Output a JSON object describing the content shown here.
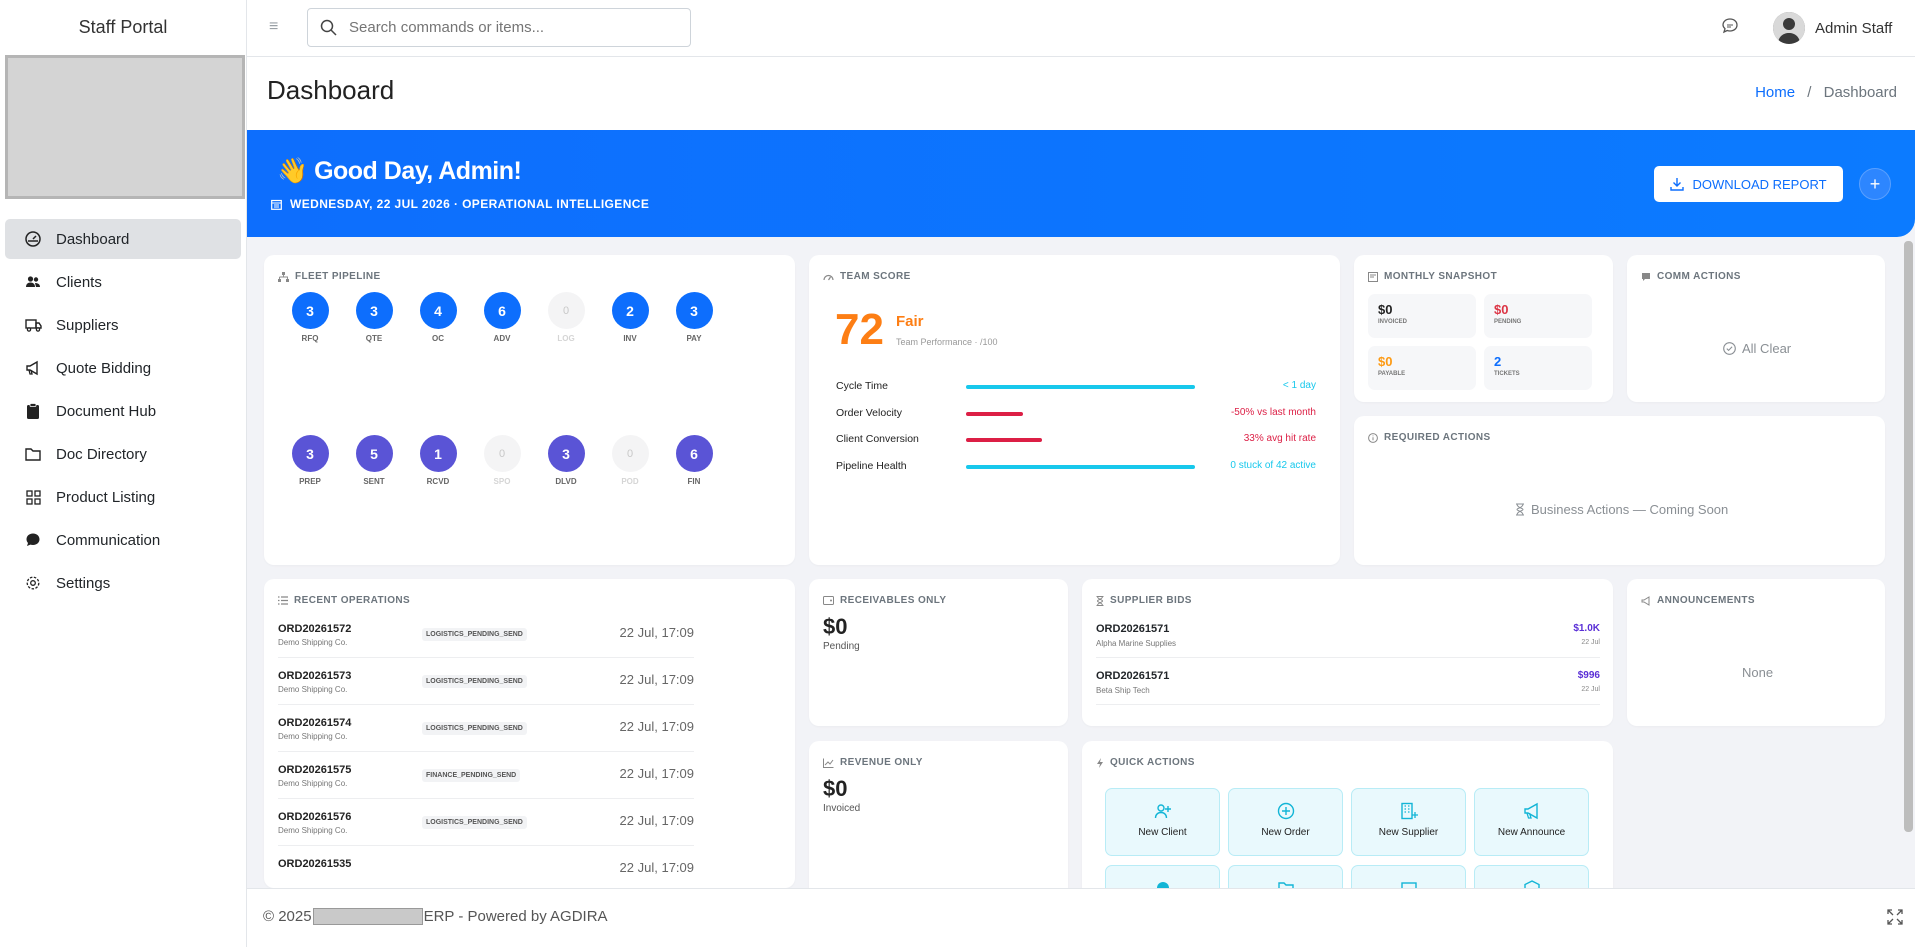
{
  "app": {
    "brand": "Staff Portal"
  },
  "sidebar": {
    "items": [
      {
        "label": "Dashboard",
        "icon": "dashboard-gauge-icon"
      },
      {
        "label": "Clients",
        "icon": "users-icon"
      },
      {
        "label": "Suppliers",
        "icon": "truck-icon"
      },
      {
        "label": "Quote Bidding",
        "icon": "megaphone-icon"
      },
      {
        "label": "Document Hub",
        "icon": "clipboard-icon"
      },
      {
        "label": "Doc Directory",
        "icon": "folder-icon"
      },
      {
        "label": "Product Listing",
        "icon": "grid-icon"
      },
      {
        "label": "Communication",
        "icon": "chat-icon"
      },
      {
        "label": "Settings",
        "icon": "gear-icon"
      }
    ]
  },
  "topbar": {
    "search_placeholder": "Search commands or items...",
    "user_name": "Admin Staff"
  },
  "page": {
    "title": "Dashboard",
    "breadcrumb_home": "Home",
    "breadcrumb_sep": "/",
    "breadcrumb_current": "Dashboard"
  },
  "hero": {
    "greeting": "👋 Good Day, Admin!",
    "date_line": "WEDNESDAY, 22 JUL 2026 · OPERATIONAL INTELLIGENCE",
    "download_label": "DOWNLOAD REPORT",
    "plus_label": "+"
  },
  "fleet": {
    "title": "FLEET PIPELINE",
    "row1": [
      {
        "n": "3",
        "l": "RFQ",
        "c": "blue"
      },
      {
        "n": "3",
        "l": "QTE",
        "c": "blue"
      },
      {
        "n": "4",
        "l": "OC",
        "c": "blue"
      },
      {
        "n": "6",
        "l": "ADV",
        "c": "blue"
      },
      {
        "n": "0",
        "l": "LOG",
        "c": "muted"
      },
      {
        "n": "2",
        "l": "INV",
        "c": "blue"
      },
      {
        "n": "3",
        "l": "PAY",
        "c": "blue"
      }
    ],
    "row2": [
      {
        "n": "3",
        "l": "PREP",
        "c": "purple"
      },
      {
        "n": "5",
        "l": "SENT",
        "c": "purple"
      },
      {
        "n": "1",
        "l": "RCVD",
        "c": "purple"
      },
      {
        "n": "0",
        "l": "SPO",
        "c": "muted"
      },
      {
        "n": "3",
        "l": "DLVD",
        "c": "purple"
      },
      {
        "n": "0",
        "l": "POD",
        "c": "muted"
      },
      {
        "n": "6",
        "l": "FIN",
        "c": "purple"
      }
    ]
  },
  "team": {
    "title": "TEAM SCORE",
    "score": "72",
    "rating": "Fair",
    "sub": "Team Performance · /100",
    "metrics": [
      {
        "label": "Cycle Time",
        "value": "< 1 day",
        "fill": 1.0,
        "color": "#17c8ec"
      },
      {
        "label": "Order Velocity",
        "value": "-50% vs last month",
        "fill": 0.25,
        "color": "#dc1f45"
      },
      {
        "label": "Client Conversion",
        "value": "33% avg hit rate",
        "fill": 0.33,
        "color": "#dc1f45"
      },
      {
        "label": "Pipeline Health",
        "value": "0 stuck of 42 active",
        "fill": 1.0,
        "color": "#17c8ec"
      }
    ]
  },
  "snapshot": {
    "title": "MONTHLY SNAPSHOT",
    "boxes": [
      {
        "v": "$0",
        "l": "INVOICED",
        "color": "#222"
      },
      {
        "v": "$0",
        "l": "PENDING",
        "color": "#dc3545"
      },
      {
        "v": "$0",
        "l": "PAYABLE",
        "color": "#fd9a14"
      },
      {
        "v": "2",
        "l": "TICKETS",
        "color": "#0d6efd"
      }
    ]
  },
  "comm": {
    "title": "COMM ACTIONS",
    "note": "All Clear"
  },
  "required": {
    "title": "REQUIRED ACTIONS",
    "note": "Business Actions — Coming Soon"
  },
  "recent": {
    "title": "RECENT OPERATIONS",
    "rows": [
      {
        "id": "ORD20261572",
        "client": "Demo Shipping Co.",
        "status": "LOGISTICS_PENDING_SEND",
        "time": "22 Jul, 17:09"
      },
      {
        "id": "ORD20261573",
        "client": "Demo Shipping Co.",
        "status": "LOGISTICS_PENDING_SEND",
        "time": "22 Jul, 17:09"
      },
      {
        "id": "ORD20261574",
        "client": "Demo Shipping Co.",
        "status": "LOGISTICS_PENDING_SEND",
        "time": "22 Jul, 17:09"
      },
      {
        "id": "ORD20261575",
        "client": "Demo Shipping Co.",
        "status": "FINANCE_PENDING_SEND",
        "time": "22 Jul, 17:09"
      },
      {
        "id": "ORD20261576",
        "client": "Demo Shipping Co.",
        "status": "LOGISTICS_PENDING_SEND",
        "time": "22 Jul, 17:09"
      },
      {
        "id": "ORD20261535",
        "client": "",
        "status": "",
        "time": "22 Jul, 17:09"
      }
    ]
  },
  "receivables": {
    "title": "RECEIVABLES ONLY",
    "amount": "$0",
    "sub": "Pending"
  },
  "revenue": {
    "title": "REVENUE ONLY",
    "amount": "$0",
    "sub": "Invoiced"
  },
  "bids": {
    "title": "SUPPLIER BIDS",
    "rows": [
      {
        "id": "ORD20261571",
        "name": "Alpha Marine Supplies",
        "amount": "$1.0K",
        "date": "22 Jul"
      },
      {
        "id": "ORD20261571",
        "name": "Beta Ship Tech",
        "amount": "$996",
        "date": "22 Jul"
      }
    ]
  },
  "announcements": {
    "title": "ANNOUNCEMENTS",
    "note": "None"
  },
  "quick": {
    "title": "QUICK ACTIONS",
    "items": [
      {
        "label": "New Client",
        "icon": "user-plus-icon"
      },
      {
        "label": "New Order",
        "icon": "plus-circle-icon"
      },
      {
        "label": "New Supplier",
        "icon": "building-plus-icon"
      },
      {
        "label": "New Announce",
        "icon": "megaphone-icon"
      },
      {
        "label": "",
        "icon": "quick-action-icon"
      },
      {
        "label": "",
        "icon": "folder-icon"
      },
      {
        "label": "",
        "icon": "quick-action-icon"
      },
      {
        "label": "",
        "icon": "box-icon"
      }
    ]
  },
  "footer": {
    "prefix": "© 2025",
    "suffix": "ERP - Powered by AGDIRA"
  }
}
